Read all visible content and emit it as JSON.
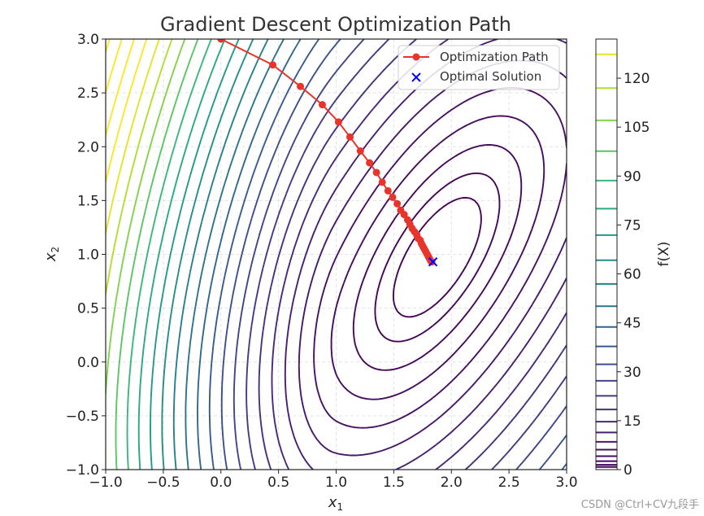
{
  "chart_data": {
    "type": "contour",
    "title": "Gradient Descent Optimization Path",
    "xlabel_base": "x",
    "xlabel_sub": "1",
    "ylabel_base": "x",
    "ylabel_sub": "2",
    "xlim": [
      -1.0,
      3.0
    ],
    "ylim": [
      -1.0,
      3.0
    ],
    "xticks": [
      -1.0,
      -0.5,
      0.0,
      0.5,
      1.0,
      1.5,
      2.0,
      2.5,
      3.0
    ],
    "yticks": [
      -1.0,
      -0.5,
      0.0,
      0.5,
      1.0,
      1.5,
      2.0,
      2.5,
      3.0
    ],
    "xtick_labels": [
      "−1.0",
      "−0.5",
      "0.0",
      "0.5",
      "1.0",
      "1.5",
      "2.0",
      "2.5",
      "3.0"
    ],
    "ytick_labels": [
      "−1.0",
      "−0.5",
      "0.0",
      "0.5",
      "1.0",
      "1.5",
      "2.0",
      "2.5",
      "3.0"
    ],
    "grid": true,
    "colormap": "viridis",
    "colorbar": {
      "label": "f(X)",
      "range": [
        0,
        132
      ],
      "ticks": [
        0,
        15,
        30,
        45,
        60,
        75,
        90,
        105,
        120
      ],
      "tick_labels": [
        "0",
        "15",
        "30",
        "45",
        "60",
        "75",
        "90",
        "105",
        "120"
      ]
    },
    "legend": {
      "placement": "top-right",
      "entries": [
        "Optimization Path",
        "Optimal Solution"
      ]
    },
    "series": [
      {
        "name": "Optimization Path",
        "color": "#e8352b",
        "x": [
          0.0,
          0.45,
          0.69,
          0.88,
          1.02,
          1.12,
          1.21,
          1.29,
          1.35,
          1.4,
          1.45,
          1.49,
          1.53,
          1.56,
          1.59,
          1.62,
          1.64,
          1.66,
          1.68,
          1.7,
          1.71,
          1.73,
          1.74,
          1.75,
          1.76,
          1.77,
          1.78,
          1.79,
          1.8,
          1.81,
          1.82,
          1.83
        ],
        "y": [
          3.0,
          2.76,
          2.56,
          2.39,
          2.23,
          2.09,
          1.96,
          1.85,
          1.76,
          1.67,
          1.59,
          1.53,
          1.47,
          1.41,
          1.37,
          1.32,
          1.28,
          1.24,
          1.21,
          1.18,
          1.15,
          1.13,
          1.1,
          1.08,
          1.06,
          1.04,
          1.02,
          1.0,
          0.98,
          0.96,
          0.94,
          0.93
        ]
      },
      {
        "name": "Optimal Solution",
        "color": "#0000ff",
        "marker": "x",
        "x": [
          1.84
        ],
        "y": [
          0.93
        ]
      }
    ],
    "contour_levels": [
      1,
      3,
      6,
      10,
      15,
      21,
      28,
      36,
      45,
      55,
      66,
      78,
      91,
      105,
      120
    ]
  },
  "watermark": "CSDN @Ctrl+CV九段手"
}
